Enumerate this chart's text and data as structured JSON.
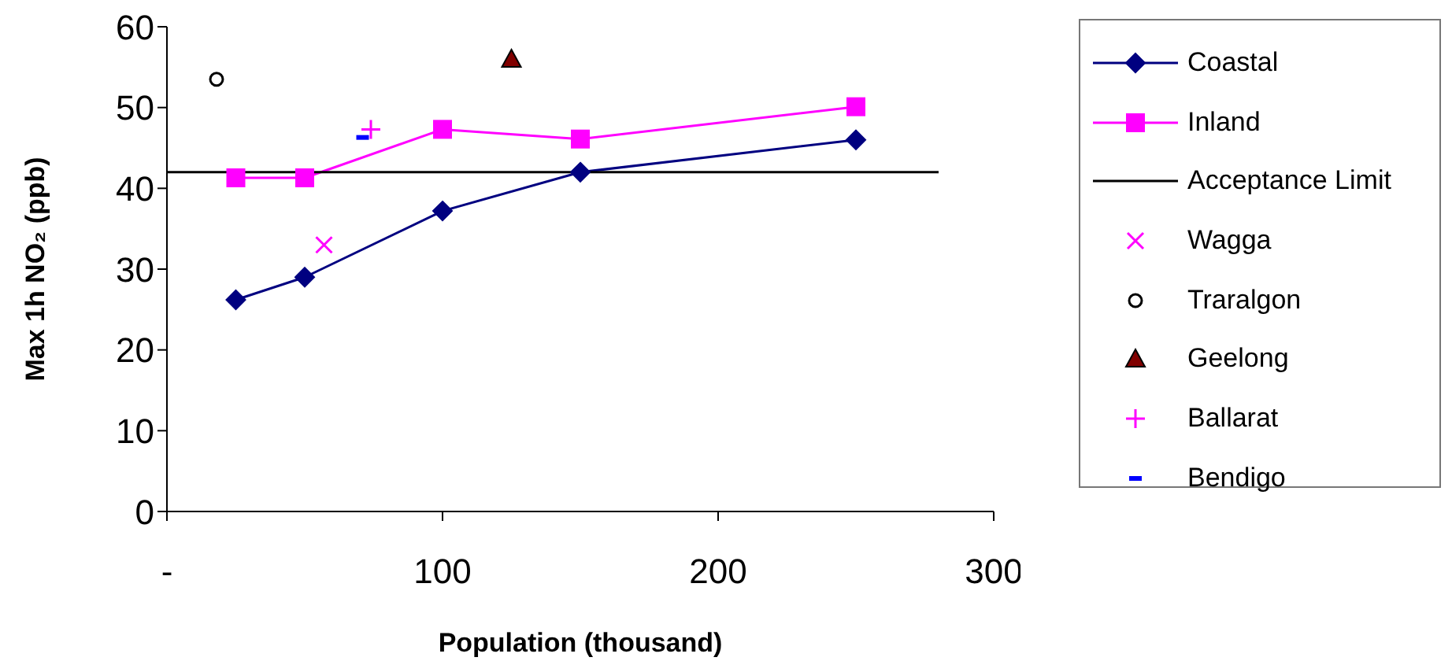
{
  "chart_data": {
    "type": "line",
    "xlabel": "Population (thousand)",
    "ylabel": "Max 1h NO₂ (ppb)",
    "xlim": [
      0,
      300
    ],
    "xticks": [
      {
        "value": 0,
        "label": "-"
      },
      100,
      200,
      300
    ],
    "ylim": [
      0,
      60
    ],
    "yticks": [
      0,
      10,
      20,
      30,
      40,
      50,
      60
    ],
    "grid": false,
    "legend": "right",
    "series": [
      {
        "name": "Coastal",
        "color": "#000080",
        "marker": "diamond",
        "x": [
          25,
          50,
          100,
          150,
          250
        ],
        "values": [
          26.2,
          29,
          37.2,
          42,
          46
        ]
      },
      {
        "name": "Inland",
        "color": "#ff00ff",
        "marker": "square",
        "x": [
          25,
          50,
          100,
          150,
          250
        ],
        "values": [
          41.3,
          41.3,
          47.3,
          46.1,
          50.1
        ]
      },
      {
        "name": "Acceptance Limit",
        "color": "#000000",
        "marker": "none",
        "x": [
          0,
          280
        ],
        "values": [
          42,
          42
        ]
      },
      {
        "name": "Wagga",
        "color": "#ff00ff",
        "type": "scatter",
        "marker": "cross",
        "x": [
          57
        ],
        "values": [
          33
        ]
      },
      {
        "name": "Traralgon",
        "color": "#000000",
        "type": "scatter",
        "marker": "circle",
        "x": [
          18
        ],
        "values": [
          53.5
        ]
      },
      {
        "name": "Geelong",
        "color": "#800000",
        "type": "scatter",
        "marker": "triangle",
        "x": [
          125
        ],
        "values": [
          56
        ]
      },
      {
        "name": "Ballarat",
        "color": "#ff00ff",
        "type": "scatter",
        "marker": "plus",
        "x": [
          74
        ],
        "values": [
          47.3
        ]
      },
      {
        "name": "Bendigo",
        "color": "#0000ff",
        "type": "scatter",
        "x": [
          71
        ],
        "values": [
          46.3
        ]
      }
    ]
  }
}
